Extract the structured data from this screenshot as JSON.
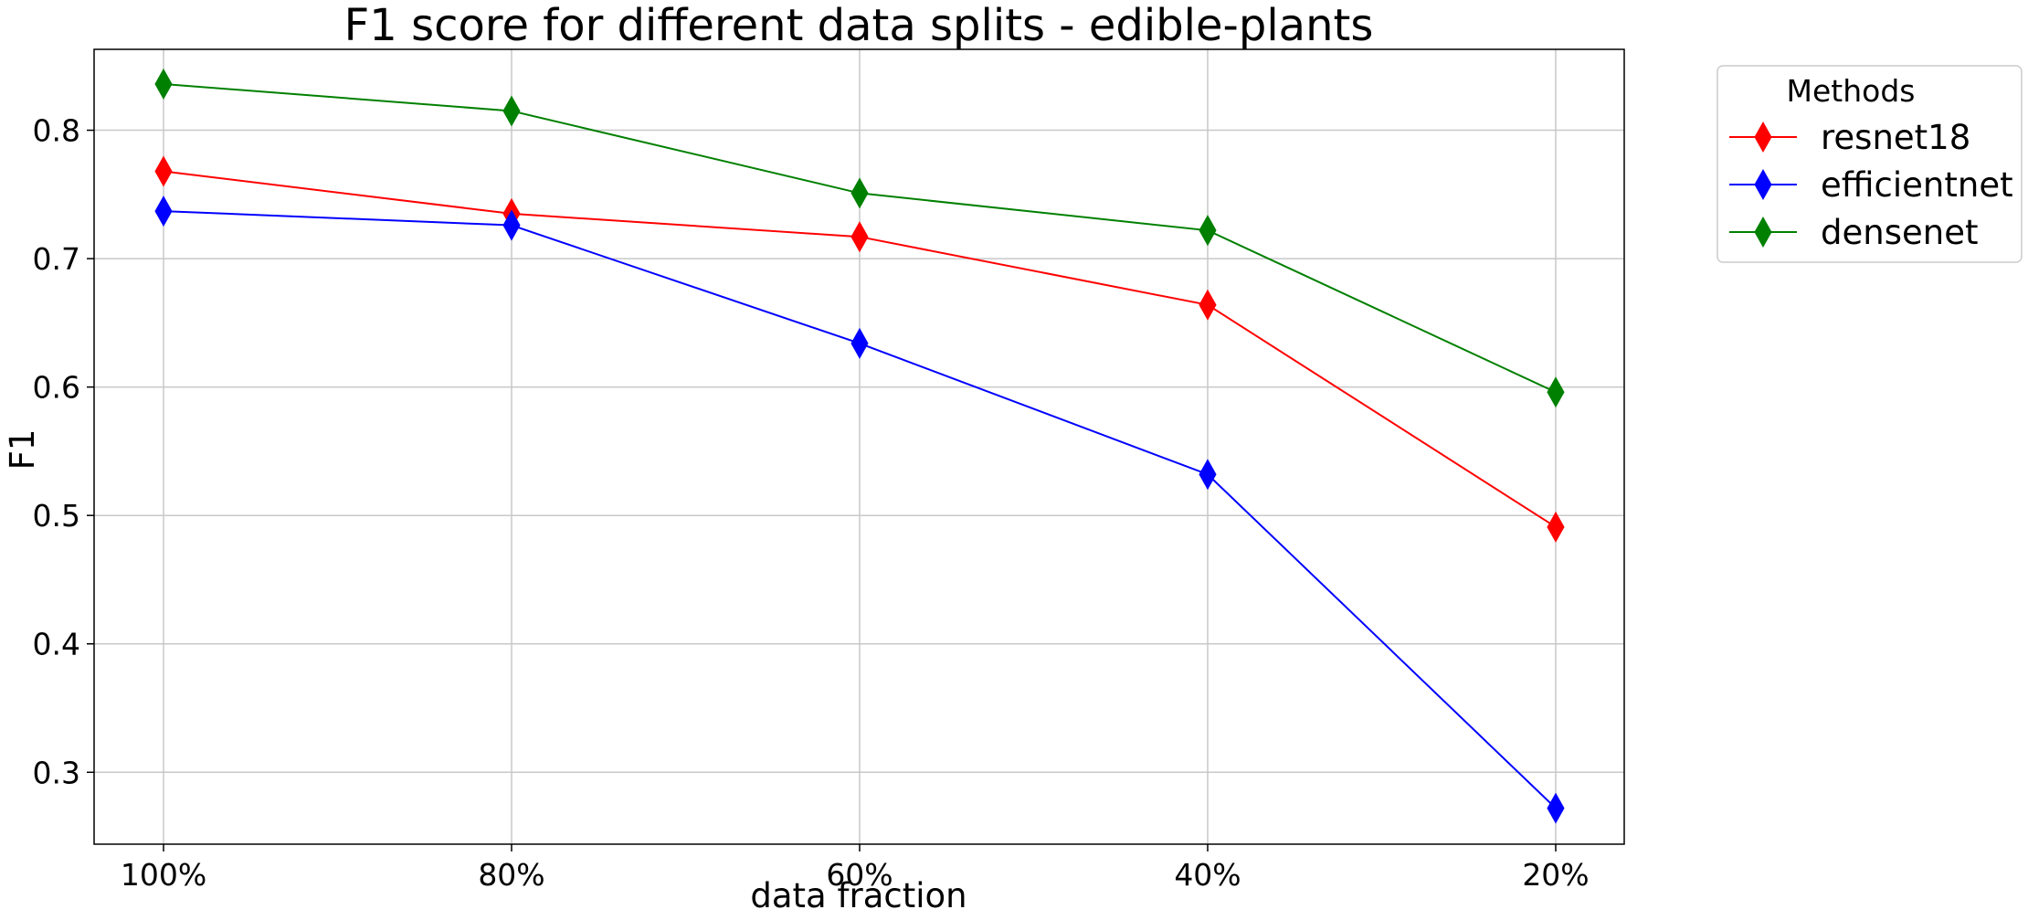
{
  "chart_data": {
    "type": "line",
    "title": "F1 score for different data splits - edible-plants",
    "xlabel": "data fraction",
    "ylabel": "F1",
    "categories": [
      "100%",
      "80%",
      "60%",
      "40%",
      "20%"
    ],
    "ylim": [
      0.244,
      0.863
    ],
    "yticks": [
      0.3,
      0.4,
      0.5,
      0.6,
      0.7,
      0.8
    ],
    "ytick_labels": [
      "0.3",
      "0.4",
      "0.5",
      "0.6",
      "0.7",
      "0.8"
    ],
    "grid": true,
    "marker": "diamond",
    "legend": {
      "title": "Methods",
      "placement": "outside-top-right"
    },
    "series": [
      {
        "name": "resnet18",
        "color": "#ff0000",
        "values": [
          0.768,
          0.735,
          0.717,
          0.664,
          0.491
        ]
      },
      {
        "name": "efficientnet",
        "color": "#0000ff",
        "values": [
          0.737,
          0.726,
          0.634,
          0.532,
          0.272
        ]
      },
      {
        "name": "densenet",
        "color": "#008000",
        "values": [
          0.836,
          0.815,
          0.751,
          0.722,
          0.596
        ]
      }
    ]
  }
}
